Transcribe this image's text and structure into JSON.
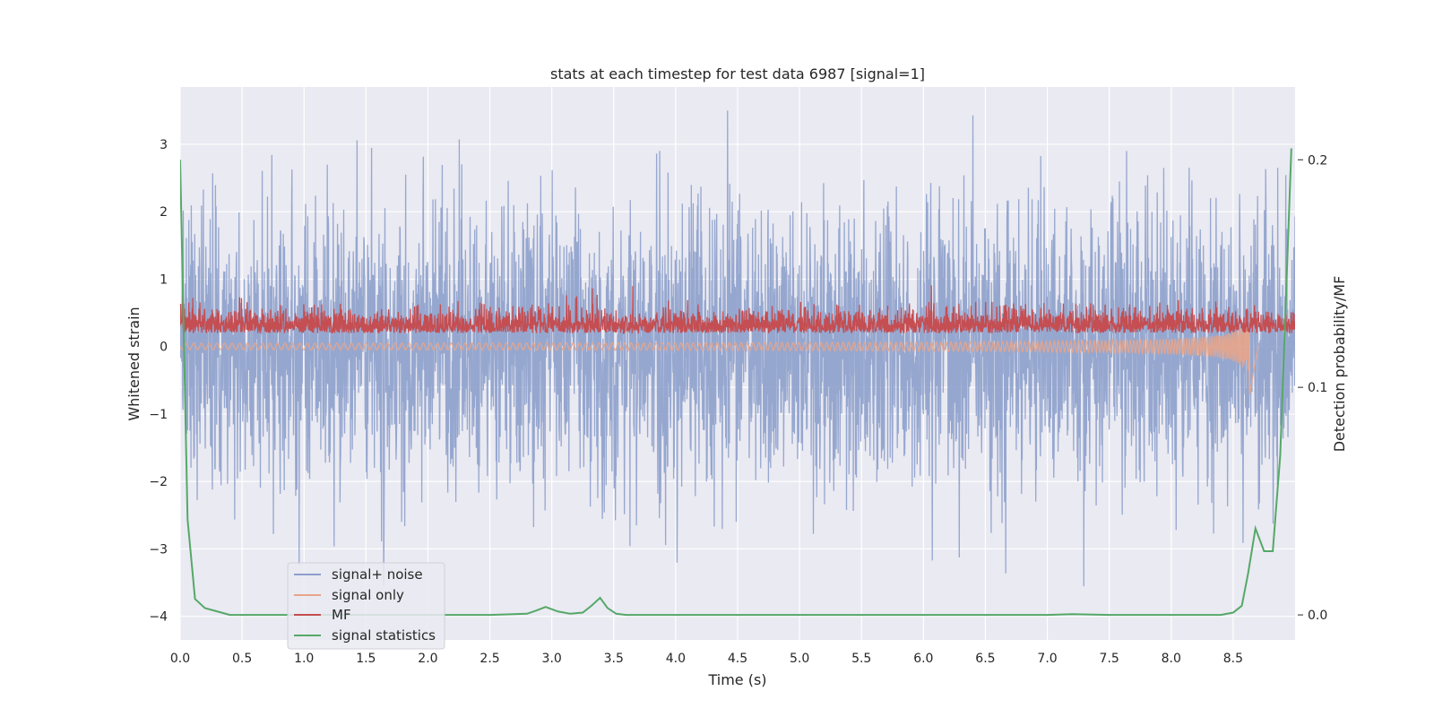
{
  "chart_data": {
    "type": "line",
    "title": "stats at each timestep for test data 6987 [signal=1]",
    "xlabel": "Time (s)",
    "ylabel": "Whitened strain",
    "y2label": "Detection probability/MF",
    "xlim": [
      0.0,
      9.0
    ],
    "ylim": [
      -4.35,
      3.85
    ],
    "y2lim": [
      -0.011,
      0.232
    ],
    "xticks": [
      "0.0",
      "0.5",
      "1.0",
      "1.5",
      "2.0",
      "2.5",
      "3.0",
      "3.5",
      "4.0",
      "4.5",
      "5.0",
      "5.5",
      "6.0",
      "6.5",
      "7.0",
      "7.5",
      "8.0",
      "8.5"
    ],
    "yticks": [
      "3",
      "2",
      "1",
      "0",
      "−1",
      "−2",
      "−3",
      "−4"
    ],
    "y2ticks": [
      "0.2",
      "0.1",
      "0.0"
    ],
    "legend_position": "lower-left",
    "legend": [
      {
        "label": "signal+ noise",
        "color": "#8da0cb"
      },
      {
        "label": "signal only",
        "color": "#e8a58a"
      },
      {
        "label": "MF",
        "color": "#c44e52"
      },
      {
        "label": "signal statistics",
        "color": "#55a868"
      }
    ],
    "series": [
      {
        "name": "signal+ noise",
        "axis": "left",
        "color": "#8da0cb",
        "description": "noisy whitened strain, roughly symmetric noise between about -3 and +3",
        "envelope_std": 1.05,
        "x_range": [
          0.0,
          9.0
        ]
      },
      {
        "name": "signal only",
        "axis": "left",
        "color": "#e8a58a",
        "description": "chirp signal, small amplitude growing towards merger near 8.65 s",
        "x_range": [
          0.0,
          8.7
        ],
        "peak_time": 8.65,
        "peak_value": -0.75
      },
      {
        "name": "MF",
        "axis": "left",
        "color": "#c44e52",
        "description": "matched filter output, fluctuating between about 0 and 0.8",
        "mean": 0.28,
        "x_range": [
          0.0,
          9.0
        ]
      },
      {
        "name": "signal statistics",
        "axis": "right",
        "color": "#55a868",
        "x": [
          0.0,
          0.06,
          0.12,
          0.2,
          0.3,
          0.4,
          0.6,
          1.0,
          1.5,
          2.0,
          2.5,
          2.8,
          2.88,
          2.95,
          3.05,
          3.15,
          3.25,
          3.32,
          3.39,
          3.45,
          3.52,
          3.6,
          4.0,
          5.0,
          6.0,
          7.0,
          7.2,
          7.5,
          8.0,
          8.4,
          8.5,
          8.57,
          8.62,
          8.68,
          8.75,
          8.82,
          8.88,
          8.94,
          8.97
        ],
        "values": [
          0.2,
          0.042,
          0.007,
          0.003,
          0.0015,
          0.0,
          0.0,
          0.0,
          0.0,
          0.0,
          0.0,
          0.0005,
          0.002,
          0.0035,
          0.0015,
          0.0005,
          0.001,
          0.004,
          0.0075,
          0.003,
          0.0005,
          0.0,
          0.0,
          0.0,
          0.0,
          0.0,
          0.0003,
          0.0,
          0.0,
          0.0,
          0.001,
          0.004,
          0.018,
          0.038,
          0.028,
          0.028,
          0.07,
          0.16,
          0.205
        ]
      }
    ]
  }
}
